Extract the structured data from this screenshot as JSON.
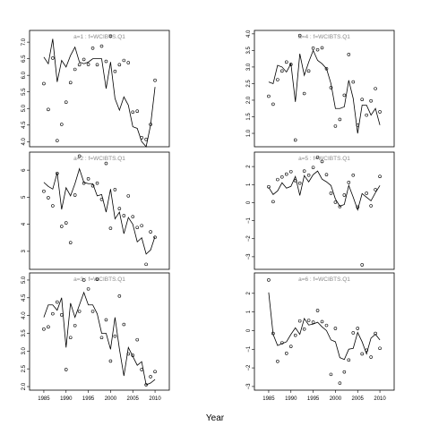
{
  "chart_data": {
    "type": "line",
    "xlabel": "Year",
    "xlim": [
      1983,
      2012
    ],
    "xticks": [
      1985,
      1990,
      1995,
      2000,
      2005,
      2010
    ],
    "series_style": {
      "line": "solid black",
      "points": "open circles"
    },
    "panels": [
      {
        "title": "a=1  :  f=WCIBTS.Q1",
        "ylim": [
          3.9,
          7.3
        ],
        "yticks": [
          4.0,
          4.5,
          5.0,
          5.5,
          6.0,
          6.5,
          7.0
        ],
        "ytick_labels": [
          "4.0",
          "4.5",
          "5.0",
          "5.5",
          "6.0",
          "6.5",
          "7.0"
        ],
        "line": {
          "x": [
            1985,
            1986,
            1987,
            1988,
            1989,
            1990,
            1991,
            1992,
            1993,
            1994,
            1995,
            1996,
            1997,
            1998,
            1999,
            2000,
            2001,
            2002,
            2003,
            2004,
            2005,
            2006,
            2007,
            2008,
            2009,
            2010
          ],
          "y": [
            6.55,
            6.35,
            7.1,
            5.8,
            6.45,
            6.25,
            6.6,
            6.85,
            6.4,
            6.35,
            6.4,
            6.5,
            6.5,
            6.5,
            5.6,
            6.4,
            5.3,
            4.95,
            5.35,
            5.1,
            4.45,
            4.4,
            4.0,
            3.85,
            4.5,
            5.65
          ]
        },
        "points": {
          "x": [
            1985,
            1986,
            1987,
            1988,
            1989,
            1990,
            1991,
            1992,
            1993,
            1994,
            1995,
            1996,
            1997,
            1998,
            1999,
            2000,
            2001,
            2002,
            2003,
            2004,
            2005,
            2006,
            2007,
            2008,
            2009,
            2010
          ],
          "y": [
            5.75,
            4.97,
            6.52,
            4.03,
            4.52,
            5.19,
            5.78,
            6.18,
            6.32,
            6.48,
            6.33,
            6.82,
            6.32,
            6.88,
            6.42,
            7.18,
            6.12,
            6.32,
            6.45,
            6.38,
            4.89,
            4.92,
            4.12,
            4.07,
            4.52,
            5.85
          ]
        }
      },
      {
        "title": "a=4  :  f=WCIBTS.Q1",
        "ylim": [
          0.65,
          4.05
        ],
        "yticks": [
          1.0,
          1.5,
          2.0,
          2.5,
          3.0,
          3.5,
          4.0
        ],
        "ytick_labels": [
          "1.0",
          "1.5",
          "2.0",
          "2.5",
          "3.0",
          "3.5",
          "4.0"
        ],
        "line": {
          "x": [
            1985,
            1986,
            1987,
            1988,
            1989,
            1990,
            1991,
            1992,
            1993,
            1994,
            1995,
            1996,
            1997,
            1998,
            1999,
            2000,
            2001,
            2002,
            2003,
            2004,
            2005,
            2006,
            2007,
            2008,
            2009,
            2010
          ],
          "y": [
            2.55,
            2.5,
            3.05,
            3.0,
            2.85,
            3.1,
            1.95,
            3.4,
            2.75,
            3.15,
            3.5,
            3.2,
            3.1,
            2.95,
            2.5,
            1.75,
            1.75,
            1.8,
            2.6,
            2.05,
            1.0,
            1.85,
            1.85,
            1.55,
            1.75,
            1.25
          ]
        },
        "points": {
          "x": [
            1985,
            1986,
            1987,
            1988,
            1989,
            1990,
            1991,
            1992,
            1993,
            1994,
            1995,
            1996,
            1997,
            1998,
            1999,
            2000,
            2001,
            2002,
            2003,
            2004,
            2005,
            2006,
            2007,
            2008,
            2009,
            2010
          ],
          "y": [
            2.12,
            1.88,
            2.62,
            2.88,
            3.15,
            3.08,
            0.8,
            3.95,
            2.2,
            2.88,
            3.57,
            3.52,
            3.58,
            2.95,
            2.38,
            1.22,
            1.42,
            2.15,
            3.38,
            2.55,
            1.25,
            2.02,
            1.55,
            1.98,
            2.35,
            1.65
          ]
        }
      },
      {
        "title": "a=2  :  f=WCIBTS.Q1",
        "ylim": [
          2.4,
          6.6
        ],
        "yticks": [
          3,
          4,
          5,
          6
        ],
        "ytick_labels": [
          "3",
          "4",
          "5",
          "6"
        ],
        "line": {
          "x": [
            1985,
            1986,
            1987,
            1988,
            1989,
            1990,
            1991,
            1992,
            1993,
            1994,
            1995,
            1996,
            1997,
            1998,
            1999,
            2000,
            2001,
            2002,
            2003,
            2004,
            2005,
            2006,
            2007,
            2008,
            2009,
            2010
          ],
          "y": [
            5.55,
            5.4,
            5.3,
            5.9,
            4.55,
            5.35,
            5.05,
            5.5,
            6.05,
            5.55,
            5.5,
            5.5,
            5.05,
            5.1,
            4.45,
            5.3,
            4.2,
            4.45,
            3.65,
            4.25,
            4.0,
            3.35,
            3.5,
            2.9,
            3.05,
            3.55
          ]
        },
        "points": {
          "x": [
            1985,
            1986,
            1987,
            1988,
            1989,
            1990,
            1991,
            1992,
            1993,
            1994,
            1995,
            1996,
            1997,
            1998,
            1999,
            2000,
            2001,
            2002,
            2003,
            2004,
            2005,
            2006,
            2007,
            2008,
            2009,
            2010
          ],
          "y": [
            5.22,
            4.98,
            4.68,
            5.88,
            3.92,
            4.05,
            3.32,
            5.08,
            6.52,
            5.52,
            5.68,
            5.42,
            5.52,
            4.92,
            6.25,
            3.85,
            5.28,
            4.58,
            4.32,
            5.05,
            4.28,
            3.88,
            3.95,
            2.52,
            3.72,
            3.52
          ]
        }
      },
      {
        "title": "a=5  :  f=WCIBTS.Q1",
        "ylim": [
          -3.6,
          2.7
        ],
        "yticks": [
          -3,
          -2,
          -1,
          0,
          1,
          2
        ],
        "ytick_labels": [
          "−3",
          "−2",
          "−1",
          "0",
          "1",
          "2"
        ],
        "line": {
          "x": [
            1985,
            1986,
            1987,
            1988,
            1989,
            1990,
            1991,
            1992,
            1993,
            1994,
            1995,
            1996,
            1997,
            1998,
            1999,
            2000,
            2001,
            2002,
            2003,
            2004,
            2005,
            2006,
            2007,
            2008,
            2009,
            2010
          ],
          "y": [
            0.85,
            0.45,
            0.65,
            1.1,
            0.8,
            0.9,
            1.45,
            0.4,
            1.5,
            1.15,
            1.55,
            1.75,
            1.3,
            1.15,
            0.95,
            0.2,
            -0.2,
            -0.1,
            0.95,
            0.3,
            -0.4,
            0.5,
            0.3,
            0.1,
            0.55,
            0.95
          ]
        },
        "points": {
          "x": [
            1985,
            1986,
            1987,
            1988,
            1989,
            1990,
            1991,
            1992,
            1993,
            1994,
            1995,
            1996,
            1997,
            1998,
            1999,
            2000,
            2001,
            2002,
            2003,
            2004,
            2005,
            2006,
            2007,
            2008,
            2009,
            2010
          ],
          "y": [
            0.88,
            0.05,
            1.28,
            1.42,
            1.58,
            1.72,
            1.22,
            1.08,
            1.75,
            1.52,
            1.95,
            2.52,
            2.28,
            1.55,
            0.52,
            0.02,
            -0.22,
            0.42,
            1.12,
            1.52,
            -0.25,
            -3.45,
            0.52,
            -0.18,
            0.72,
            1.45
          ]
        }
      },
      {
        "title": "a=3  :  f=WCIBTS.Q1",
        "ylim": [
          1.95,
          5.15
        ],
        "yticks": [
          2.0,
          2.5,
          3.0,
          3.5,
          4.0,
          4.5,
          5.0
        ],
        "ytick_labels": [
          "2.0",
          "2.5",
          "3.0",
          "3.5",
          "4.0",
          "4.5",
          "5.0"
        ],
        "line": {
          "x": [
            1985,
            1986,
            1987,
            1988,
            1989,
            1990,
            1991,
            1992,
            1993,
            1994,
            1995,
            1996,
            1997,
            1998,
            1999,
            2000,
            2001,
            2002,
            2003,
            2004,
            2005,
            2006,
            2007,
            2008,
            2009,
            2010
          ],
          "y": [
            3.95,
            4.3,
            4.3,
            4.15,
            4.5,
            3.1,
            4.35,
            3.95,
            4.3,
            4.65,
            4.3,
            4.3,
            4.05,
            3.5,
            3.5,
            3.05,
            3.95,
            3.05,
            2.3,
            3.1,
            2.85,
            2.6,
            2.7,
            2.05,
            2.1,
            2.2
          ]
        },
        "points": {
          "x": [
            1985,
            1986,
            1987,
            1988,
            1989,
            1990,
            1991,
            1992,
            1993,
            1994,
            1995,
            1996,
            1997,
            1998,
            1999,
            2000,
            2001,
            2002,
            2003,
            2004,
            2005,
            2006,
            2007,
            2008,
            2009,
            2010
          ],
          "y": [
            3.62,
            3.68,
            4.05,
            4.38,
            4.02,
            2.48,
            3.38,
            3.72,
            4.12,
            5.0,
            4.75,
            4.12,
            5.02,
            3.38,
            3.88,
            2.72,
            3.42,
            4.55,
            3.75,
            2.92,
            2.88,
            3.32,
            2.48,
            2.05,
            2.28,
            2.42
          ]
        }
      },
      {
        "title": "a=6  :  f=WCIBTS.Q1",
        "ylim": [
          -3.1,
          3.0
        ],
        "yticks": [
          -3,
          -2,
          -1,
          0,
          1,
          2
        ],
        "ytick_labels": [
          "−3",
          "−2",
          "−1",
          "0",
          "1",
          "2"
        ],
        "line": {
          "x": [
            1985,
            1986,
            1987,
            1988,
            1989,
            1990,
            1991,
            1992,
            1993,
            1994,
            1995,
            1996,
            1997,
            1998,
            1999,
            2000,
            2001,
            2002,
            2003,
            2004,
            2005,
            2006,
            2007,
            2008,
            2009,
            2010
          ],
          "y": [
            2.05,
            -0.2,
            -0.8,
            -0.7,
            -0.6,
            -0.2,
            0.15,
            -0.2,
            0.65,
            0.3,
            0.35,
            0.45,
            0.2,
            0.0,
            -0.5,
            -0.6,
            -1.45,
            -1.55,
            -1.0,
            -0.95,
            -0.1,
            -0.6,
            -1.25,
            -0.4,
            -0.2,
            -0.5
          ]
        },
        "points": {
          "x": [
            1985,
            1986,
            1987,
            1988,
            1989,
            1990,
            1991,
            1992,
            1993,
            1994,
            1995,
            1996,
            1997,
            1998,
            1999,
            2000,
            2001,
            2002,
            2003,
            2004,
            2005,
            2006,
            2007,
            2008,
            2009,
            2010
          ],
          "y": [
            2.72,
            -0.15,
            -1.65,
            -0.65,
            -1.22,
            -0.85,
            -0.25,
            0.52,
            0.08,
            0.55,
            0.45,
            1.08,
            0.48,
            0.28,
            -2.35,
            0.12,
            -2.82,
            -2.22,
            -1.58,
            -0.12,
            0.12,
            -1.25,
            -1.05,
            -1.42,
            -0.15,
            -0.95
          ]
        }
      }
    ]
  }
}
